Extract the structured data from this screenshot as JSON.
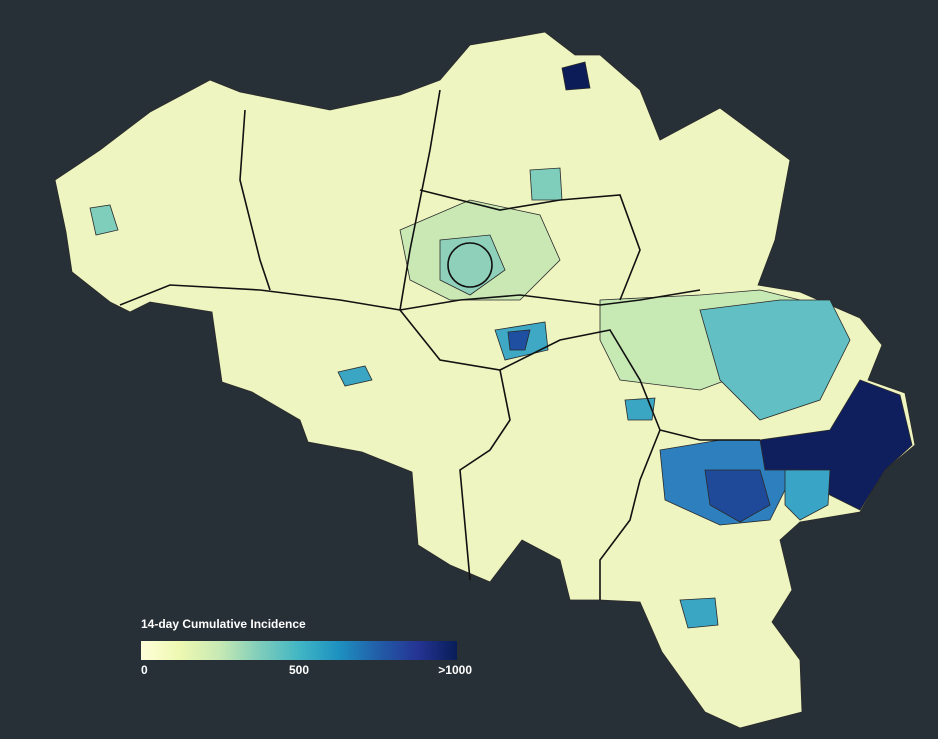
{
  "legend": {
    "title": "14-day Cumulative Incidence",
    "range": [
      0,
      1000
    ],
    "ticks": [
      0,
      500,
      {
        "value": 1000,
        "label": ">1000"
      }
    ],
    "colors": [
      "#ffffd9",
      "#edf8b1",
      "#c7e9b4",
      "#7fcdbb",
      "#41b6c4",
      "#1d91c0",
      "#225ea8",
      "#253494",
      "#081d58"
    ]
  }
}
